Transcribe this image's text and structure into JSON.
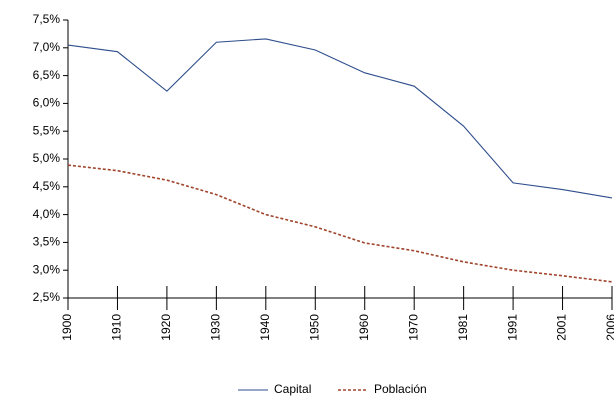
{
  "chart_data": {
    "type": "line",
    "categories": [
      "1900",
      "1910",
      "1920",
      "1930",
      "1940",
      "1950",
      "1960",
      "1970",
      "1981",
      "1991",
      "2001",
      "2006"
    ],
    "series": [
      {
        "name": "Capital",
        "color": "#2e4d8c",
        "dash": false,
        "values": [
          7.05,
          6.93,
          6.22,
          7.1,
          7.16,
          6.96,
          6.55,
          6.31,
          5.59,
          4.57,
          4.45,
          4.3
        ]
      },
      {
        "name": "Población",
        "color": "#a0442c",
        "dash": true,
        "values": [
          4.89,
          4.79,
          4.62,
          4.36,
          4.0,
          3.78,
          3.49,
          3.35,
          3.15,
          3.0,
          2.9,
          2.79
        ]
      }
    ],
    "ylim": [
      2.5,
      7.5
    ],
    "yticks": [
      {
        "value": 2.5,
        "label": "2,5%"
      },
      {
        "value": 3.0,
        "label": "3,0%"
      },
      {
        "value": 3.5,
        "label": "3,5%"
      },
      {
        "value": 4.0,
        "label": "4,0%"
      },
      {
        "value": 4.5,
        "label": "4,5%"
      },
      {
        "value": 5.0,
        "label": "5,0%"
      },
      {
        "value": 5.5,
        "label": "5,5%"
      },
      {
        "value": 6.0,
        "label": "6,0%"
      },
      {
        "value": 6.5,
        "label": "6,5%"
      },
      {
        "value": 7.0,
        "label": "7,0%"
      },
      {
        "value": 7.5,
        "label": "7,5%"
      }
    ],
    "grid": false,
    "legend": "bottom"
  }
}
